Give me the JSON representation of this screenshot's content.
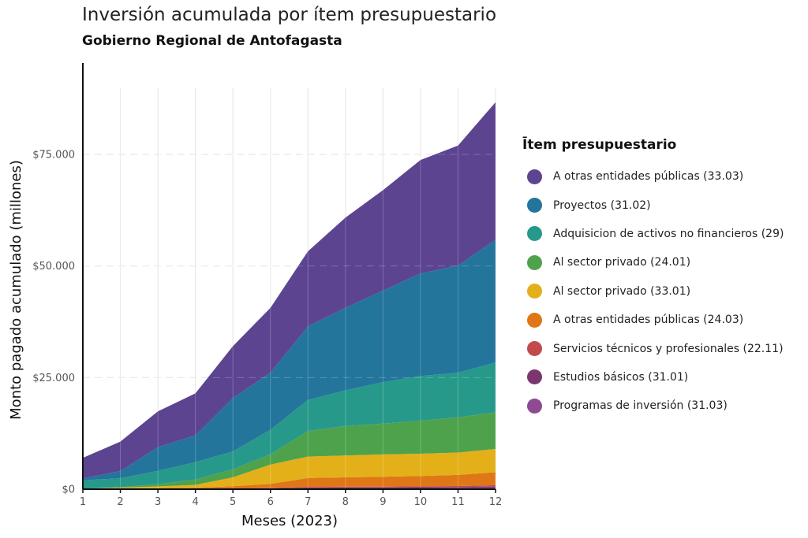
{
  "title": "Inversión acumulada por ítem presupuestario",
  "subtitle": "Gobierno Regional de Antofagasta",
  "chart_data": {
    "type": "area",
    "stacked": true,
    "xlabel": "Meses (2023)",
    "ylabel": "Monto pagado acumulado (millones)",
    "x": [
      1,
      2,
      3,
      4,
      5,
      6,
      7,
      8,
      9,
      10,
      11,
      12
    ],
    "xlim": [
      1,
      12
    ],
    "ylim": [
      0,
      90000
    ],
    "y_ticks": [
      0,
      25000,
      50000,
      75000
    ],
    "y_tick_labels": [
      "$0",
      "$25.000",
      "$50.000",
      "$75.000"
    ],
    "x_tick_labels": [
      "1",
      "2",
      "3",
      "4",
      "5",
      "6",
      "7",
      "8",
      "9",
      "10",
      "11",
      "12"
    ],
    "grid": true,
    "legend_position": "right",
    "legend_title": "Ītem presupuestario",
    "series": [
      {
        "name": "Programas de inversión (31.03)",
        "color": "#8e4a93",
        "values": [
          50,
          60,
          70,
          80,
          90,
          100,
          150,
          160,
          170,
          180,
          200,
          250
        ]
      },
      {
        "name": "Estudios básicos (31.01)",
        "color": "#7b3670",
        "values": [
          30,
          40,
          50,
          60,
          80,
          100,
          200,
          220,
          240,
          260,
          280,
          350
        ]
      },
      {
        "name": "Servicios técnicos y profesionales (22.11)",
        "color": "#c34a4a",
        "values": [
          20,
          30,
          40,
          60,
          80,
          100,
          150,
          160,
          180,
          200,
          220,
          300
        ]
      },
      {
        "name": "A otras entidades públicas (24.03)",
        "color": "#e07716",
        "values": [
          0,
          20,
          50,
          150,
          400,
          900,
          2000,
          2100,
          2200,
          2300,
          2500,
          2900
        ]
      },
      {
        "name": "Al sector privado (33.01)",
        "color": "#e3b019",
        "values": [
          0,
          200,
          400,
          600,
          2000,
          4300,
          4800,
          4900,
          5000,
          5000,
          5000,
          5200
        ]
      },
      {
        "name": "Al sector privado (24.01)",
        "color": "#4ea24b",
        "values": [
          0,
          100,
          500,
          1200,
          1800,
          2300,
          5700,
          6600,
          6900,
          7400,
          7900,
          8200
        ]
      },
      {
        "name": "Adquisicion de activos no financieros (29)",
        "color": "#27998a",
        "values": [
          1900,
          2000,
          3000,
          3900,
          4000,
          5500,
          7000,
          8000,
          9300,
          10000,
          10000,
          11200
        ]
      },
      {
        "name": "Proyectos (31.02)",
        "color": "#23759c",
        "values": [
          400,
          1600,
          5300,
          6000,
          12000,
          12800,
          16500,
          18500,
          20500,
          23000,
          24000,
          27500
        ]
      },
      {
        "name": "A otras entidades públicas (33.03)",
        "color": "#5c4491",
        "values": [
          4600,
          6600,
          8000,
          9400,
          11600,
          14500,
          16800,
          20200,
          22500,
          25400,
          26900,
          30800
        ]
      }
    ]
  }
}
